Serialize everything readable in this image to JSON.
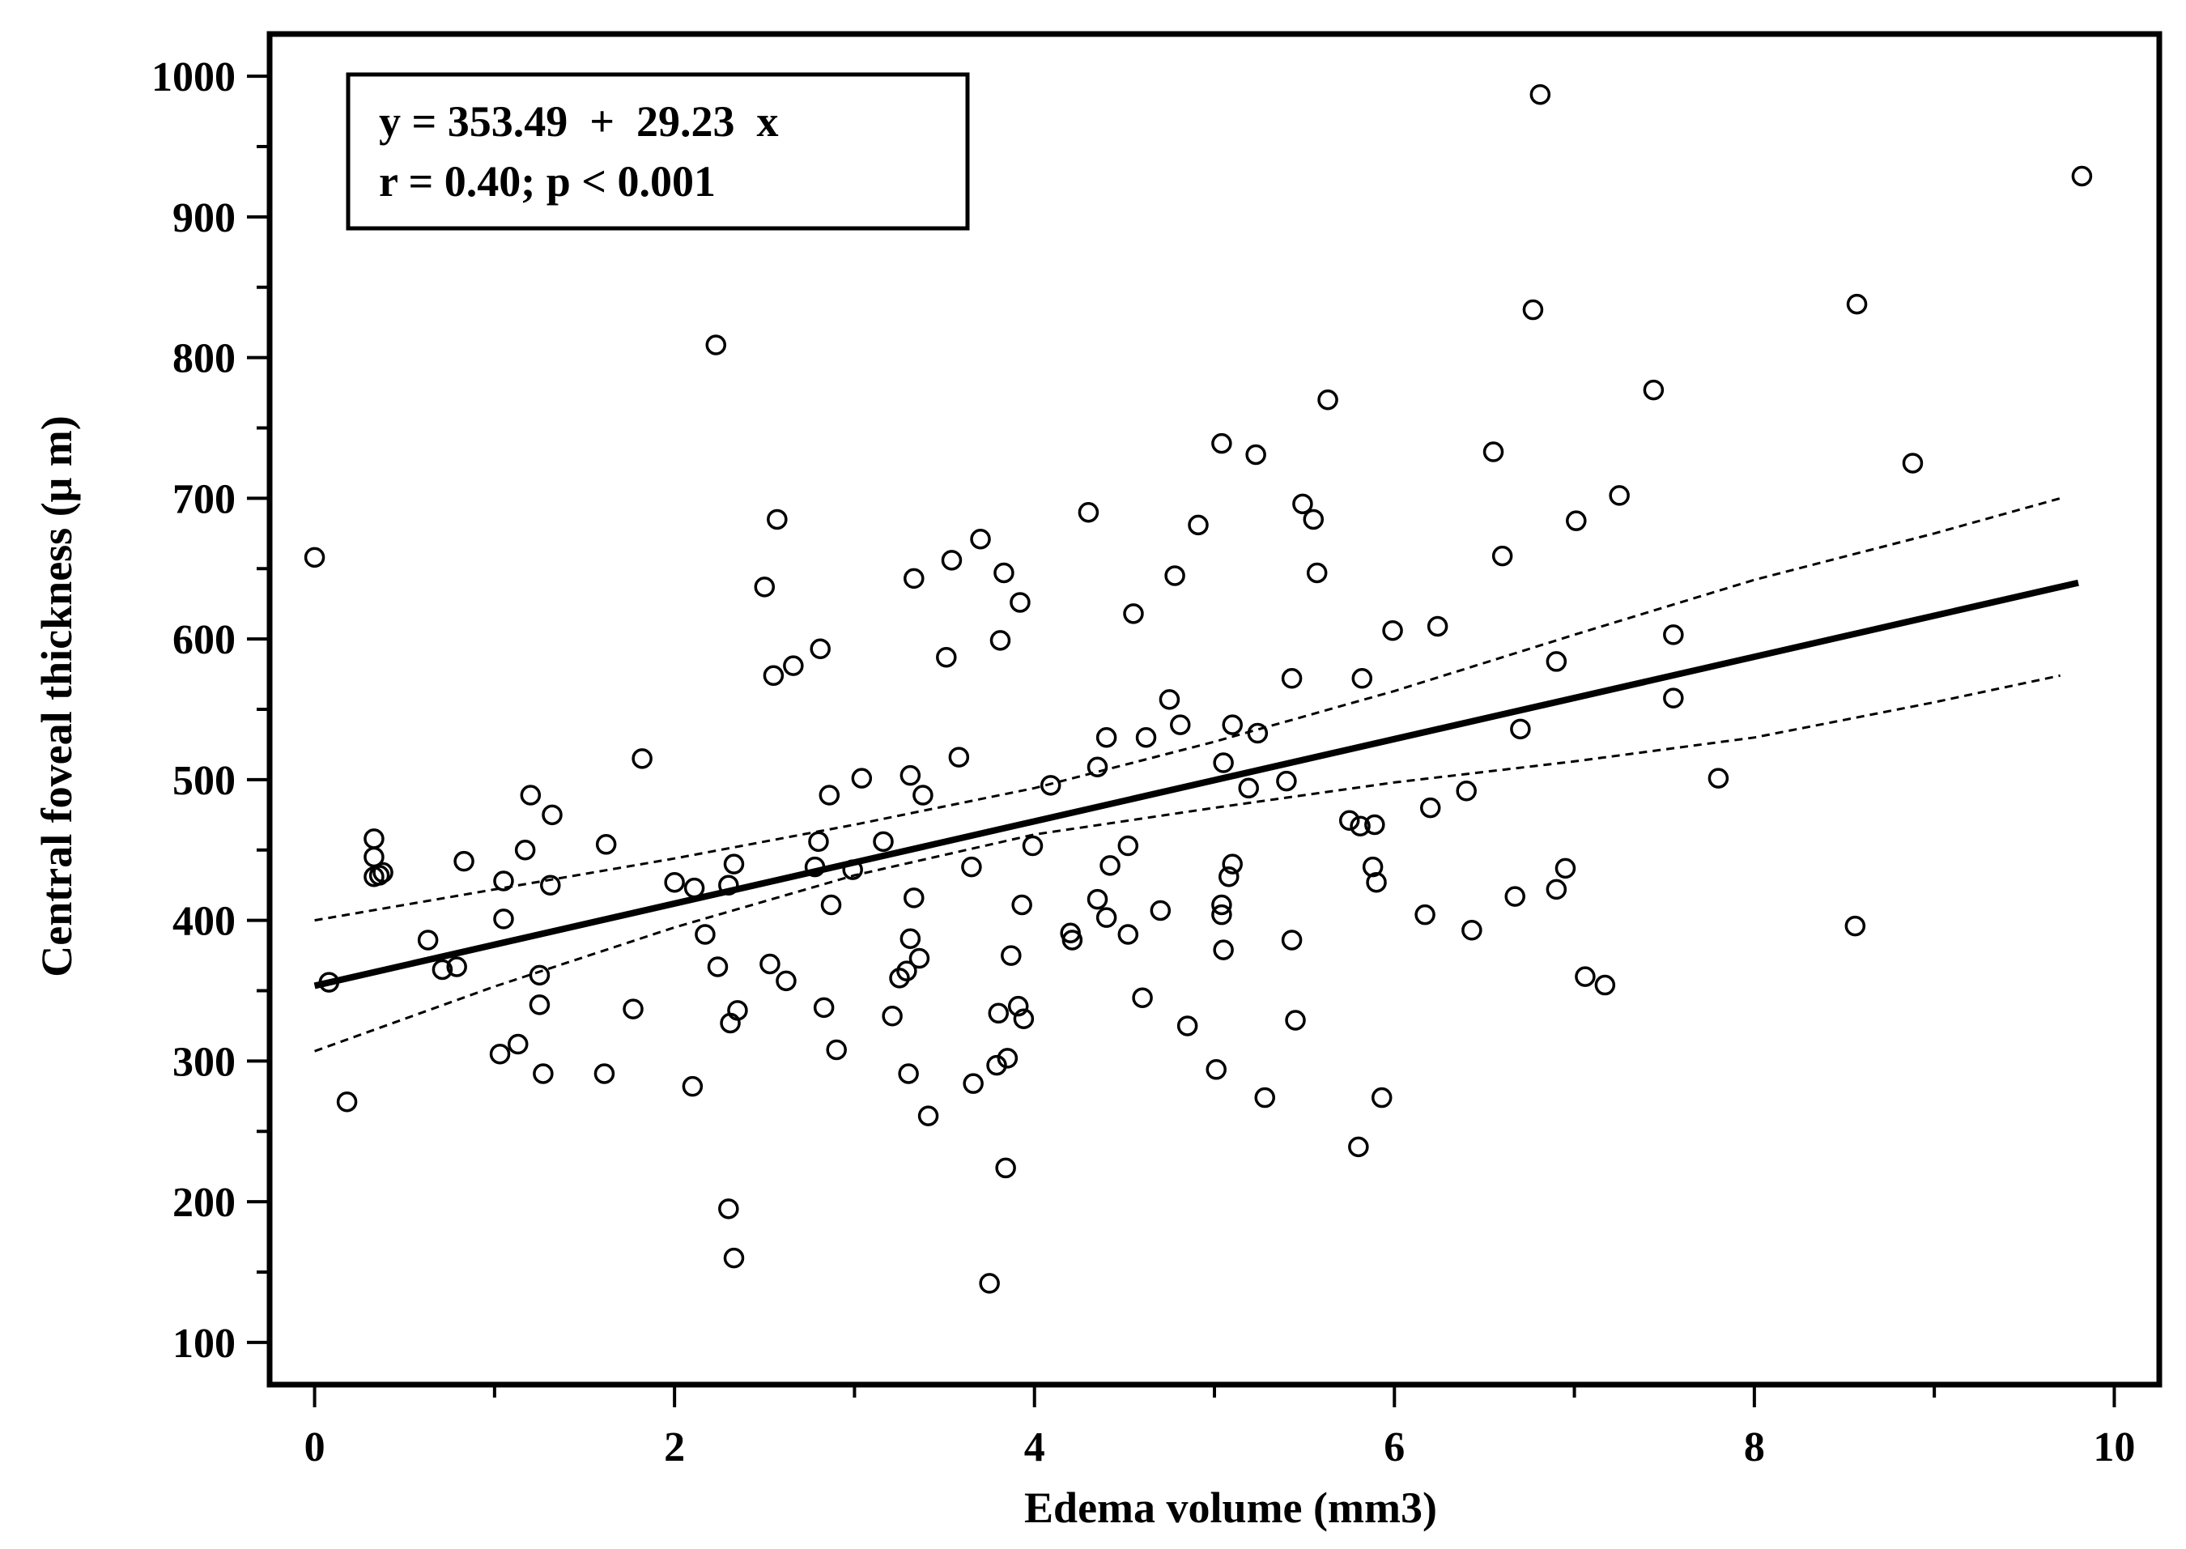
{
  "chart_data": {
    "type": "scatter",
    "title": "",
    "xlabel": "Edema volume (mm3)",
    "ylabel": "Central foveal thickness (μ m)",
    "xlim": [
      -0.25,
      10.25
    ],
    "ylim": [
      70,
      1030
    ],
    "xticks": [
      0,
      2,
      4,
      6,
      8,
      10
    ],
    "xtick_labels": [
      "0",
      "2",
      "4",
      "6",
      "8",
      "10"
    ],
    "xminor": [
      1,
      3,
      5,
      7,
      9
    ],
    "yticks": [
      100,
      200,
      300,
      400,
      500,
      600,
      700,
      800,
      900,
      1000
    ],
    "ytick_labels": [
      "100",
      "200",
      "300",
      "400",
      "500",
      "600",
      "700",
      "800",
      "900",
      "1000"
    ],
    "yminor": [
      150,
      250,
      350,
      450,
      550,
      650,
      750,
      850,
      950
    ],
    "grid": false,
    "annotation": {
      "line1": "y = 353.49  +  29.23  x",
      "line2": "r = 0.40; p < 0.001"
    },
    "regression": {
      "intercept": 353.49,
      "slope": 29.23,
      "x_range": [
        0,
        9.8
      ]
    },
    "ci_upper": [
      [
        0,
        400
      ],
      [
        1,
        422
      ],
      [
        2,
        444
      ],
      [
        3,
        468
      ],
      [
        4,
        494
      ],
      [
        5,
        527
      ],
      [
        6,
        563
      ],
      [
        7,
        603
      ],
      [
        8,
        642
      ],
      [
        9,
        675
      ],
      [
        9.7,
        700
      ]
    ],
    "ci_lower": [
      [
        0,
        307
      ],
      [
        1,
        353
      ],
      [
        2,
        395
      ],
      [
        3,
        432
      ],
      [
        4,
        461
      ],
      [
        5,
        480
      ],
      [
        6,
        498
      ],
      [
        7,
        513
      ],
      [
        8,
        530
      ],
      [
        9,
        555
      ],
      [
        9.7,
        574
      ]
    ],
    "points": [
      [
        0.0,
        658
      ],
      [
        0.08,
        356
      ],
      [
        0.18,
        271
      ],
      [
        0.33,
        458
      ],
      [
        0.33,
        445
      ],
      [
        0.33,
        431
      ],
      [
        0.36,
        432
      ],
      [
        0.38,
        434
      ],
      [
        0.63,
        386
      ],
      [
        0.71,
        365
      ],
      [
        0.79,
        367
      ],
      [
        0.83,
        442
      ],
      [
        1.03,
        305
      ],
      [
        1.05,
        428
      ],
      [
        1.05,
        401
      ],
      [
        1.13,
        312
      ],
      [
        1.17,
        450
      ],
      [
        1.2,
        489
      ],
      [
        1.25,
        361
      ],
      [
        1.25,
        340
      ],
      [
        1.27,
        291
      ],
      [
        1.31,
        425
      ],
      [
        1.32,
        475
      ],
      [
        1.61,
        291
      ],
      [
        1.62,
        454
      ],
      [
        1.77,
        337
      ],
      [
        1.82,
        515
      ],
      [
        2.0,
        427
      ],
      [
        2.1,
        282
      ],
      [
        2.11,
        423
      ],
      [
        2.17,
        390
      ],
      [
        2.23,
        809
      ],
      [
        2.24,
        367
      ],
      [
        2.3,
        195
      ],
      [
        2.3,
        425
      ],
      [
        2.31,
        327
      ],
      [
        2.33,
        160
      ],
      [
        2.33,
        440
      ],
      [
        2.35,
        336
      ],
      [
        2.5,
        637
      ],
      [
        2.53,
        369
      ],
      [
        2.55,
        574
      ],
      [
        2.57,
        685
      ],
      [
        2.62,
        357
      ],
      [
        2.66,
        581
      ],
      [
        2.78,
        438
      ],
      [
        2.8,
        456
      ],
      [
        2.81,
        593
      ],
      [
        2.83,
        338
      ],
      [
        2.86,
        489
      ],
      [
        2.87,
        411
      ],
      [
        2.9,
        308
      ],
      [
        2.99,
        436
      ],
      [
        3.04,
        501
      ],
      [
        3.16,
        456
      ],
      [
        3.21,
        332
      ],
      [
        3.25,
        359
      ],
      [
        3.29,
        364
      ],
      [
        3.3,
        291
      ],
      [
        3.31,
        387
      ],
      [
        3.31,
        503
      ],
      [
        3.33,
        416
      ],
      [
        3.33,
        643
      ],
      [
        3.36,
        373
      ],
      [
        3.38,
        489
      ],
      [
        3.41,
        261
      ],
      [
        3.51,
        587
      ],
      [
        3.54,
        656
      ],
      [
        3.58,
        516
      ],
      [
        3.65,
        438
      ],
      [
        3.66,
        284
      ],
      [
        3.7,
        671
      ],
      [
        3.75,
        142
      ],
      [
        3.79,
        297
      ],
      [
        3.8,
        334
      ],
      [
        3.81,
        599
      ],
      [
        3.83,
        647
      ],
      [
        3.84,
        224
      ],
      [
        3.85,
        302
      ],
      [
        3.87,
        375
      ],
      [
        3.91,
        339
      ],
      [
        3.92,
        626
      ],
      [
        3.93,
        411
      ],
      [
        3.94,
        330
      ],
      [
        3.99,
        453
      ],
      [
        4.09,
        496
      ],
      [
        4.2,
        391
      ],
      [
        4.21,
        386
      ],
      [
        4.3,
        690
      ],
      [
        4.35,
        509
      ],
      [
        4.35,
        415
      ],
      [
        4.4,
        530
      ],
      [
        4.4,
        402
      ],
      [
        4.42,
        439
      ],
      [
        4.52,
        390
      ],
      [
        4.52,
        453
      ],
      [
        4.55,
        618
      ],
      [
        4.6,
        345
      ],
      [
        4.62,
        530
      ],
      [
        4.7,
        407
      ],
      [
        4.75,
        557
      ],
      [
        4.78,
        645
      ],
      [
        4.81,
        539
      ],
      [
        4.85,
        325
      ],
      [
        4.91,
        681
      ],
      [
        5.01,
        294
      ],
      [
        5.04,
        739
      ],
      [
        5.04,
        404
      ],
      [
        5.04,
        411
      ],
      [
        5.05,
        379
      ],
      [
        5.05,
        512
      ],
      [
        5.08,
        431
      ],
      [
        5.1,
        539
      ],
      [
        5.1,
        440
      ],
      [
        5.19,
        494
      ],
      [
        5.23,
        731
      ],
      [
        5.24,
        533
      ],
      [
        5.28,
        274
      ],
      [
        5.4,
        499
      ],
      [
        5.43,
        572
      ],
      [
        5.43,
        386
      ],
      [
        5.45,
        329
      ],
      [
        5.49,
        696
      ],
      [
        5.55,
        685
      ],
      [
        5.57,
        647
      ],
      [
        5.63,
        770
      ],
      [
        5.75,
        471
      ],
      [
        5.8,
        239
      ],
      [
        5.81,
        467
      ],
      [
        5.82,
        572
      ],
      [
        5.88,
        438
      ],
      [
        5.89,
        468
      ],
      [
        5.9,
        427
      ],
      [
        5.93,
        274
      ],
      [
        5.99,
        606
      ],
      [
        6.17,
        404
      ],
      [
        6.2,
        480
      ],
      [
        6.24,
        609
      ],
      [
        6.4,
        492
      ],
      [
        6.43,
        393
      ],
      [
        6.55,
        733
      ],
      [
        6.6,
        659
      ],
      [
        6.67,
        417
      ],
      [
        6.7,
        536
      ],
      [
        6.77,
        834
      ],
      [
        6.81,
        987
      ],
      [
        6.9,
        584
      ],
      [
        6.9,
        422
      ],
      [
        6.95,
        437
      ],
      [
        7.01,
        684
      ],
      [
        7.06,
        360
      ],
      [
        7.17,
        354
      ],
      [
        7.25,
        702
      ],
      [
        7.44,
        777
      ],
      [
        7.55,
        603
      ],
      [
        7.55,
        558
      ],
      [
        7.8,
        501
      ],
      [
        8.56,
        396
      ],
      [
        8.57,
        838
      ],
      [
        8.88,
        725
      ],
      [
        9.82,
        929
      ]
    ]
  }
}
